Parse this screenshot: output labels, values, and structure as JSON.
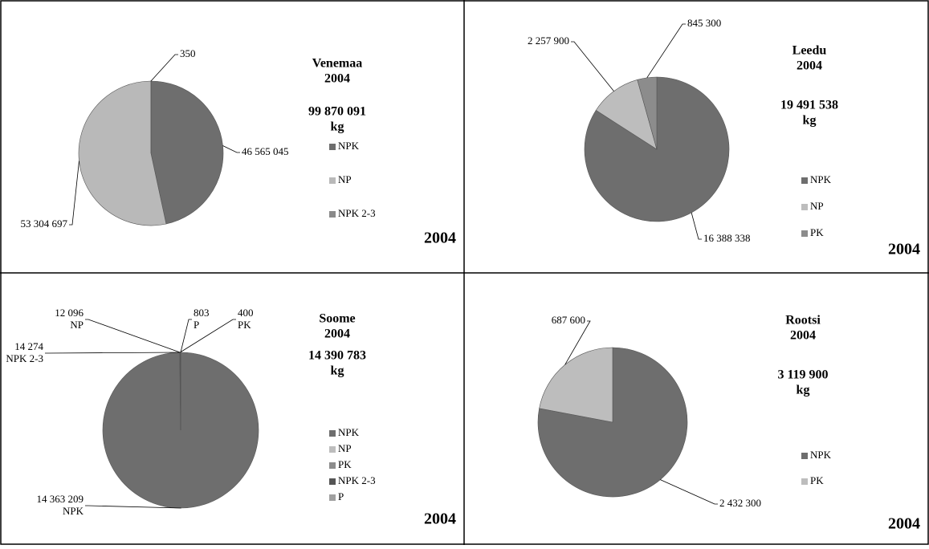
{
  "chart_data": [
    {
      "type": "pie",
      "title": "Venemaa",
      "subtitle": "2004",
      "total": "99 870 091",
      "unit": "kg",
      "corner": "2004",
      "categories": [
        "NPK",
        "NP",
        "NPK 2-3"
      ],
      "values": [
        46565045,
        53304697,
        350
      ],
      "value_labels": [
        "46 565 045",
        "53 304 697",
        "350"
      ],
      "colors": [
        "#6e6e6e",
        "#b9b9b9",
        "#8a8a8a"
      ],
      "show_category_in_label": false
    },
    {
      "type": "pie",
      "title": "Leedu",
      "subtitle": "2004",
      "total": "19 491 538",
      "unit": "kg",
      "corner": "2004",
      "categories": [
        "NPK",
        "NP",
        "PK"
      ],
      "values": [
        16388338,
        2257900,
        845300
      ],
      "value_labels": [
        "16 388 338",
        "2 257 900",
        "845 300"
      ],
      "colors": [
        "#6e6e6e",
        "#bdbdbd",
        "#8c8c8c"
      ],
      "show_category_in_label": false
    },
    {
      "type": "pie",
      "title": "Soome",
      "subtitle": "2004",
      "total": "14 390 783",
      "unit": "kg",
      "corner": "2004",
      "categories": [
        "NPK",
        "NP",
        "PK",
        "NPK 2-3",
        "P"
      ],
      "values": [
        14363209,
        12096,
        400,
        14274,
        803
      ],
      "value_labels": [
        "14 363 209",
        "12 096",
        "400",
        "14 274",
        "803"
      ],
      "colors": [
        "#6e6e6e",
        "#bdbdbd",
        "#8c8c8c",
        "#555555",
        "#a0a0a0"
      ],
      "show_category_in_label": true
    },
    {
      "type": "pie",
      "title": "Rootsi",
      "subtitle": "2004",
      "total": "3 119 900",
      "unit": "kg",
      "corner": "2004",
      "categories": [
        "NPK",
        "PK"
      ],
      "values": [
        2432300,
        687600
      ],
      "value_labels": [
        "2 432 300",
        "687 600"
      ],
      "colors": [
        "#6e6e6e",
        "#bdbdbd"
      ],
      "show_category_in_label": false
    }
  ]
}
